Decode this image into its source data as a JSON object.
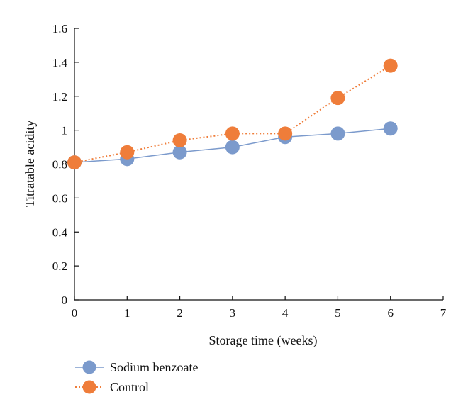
{
  "chart_data": {
    "type": "line",
    "title": "",
    "xlabel": "Storage time (weeks)",
    "ylabel": "Titratable acidity",
    "xlim": [
      0,
      7
    ],
    "ylim": [
      0,
      1.6
    ],
    "xticks": [
      "0",
      "1",
      "2",
      "3",
      "4",
      "5",
      "6",
      "7"
    ],
    "yticks": [
      "0",
      "0.2",
      "0.4",
      "0.6",
      "0.8",
      "1",
      "1.2",
      "1.4",
      "1.6"
    ],
    "grid": false,
    "legend_position": "bottom-left",
    "series": [
      {
        "name": "Sodium benzoate",
        "color": "#7b9acc",
        "line_style": "solid",
        "x": [
          0,
          1,
          2,
          3,
          4,
          5,
          6
        ],
        "y": [
          0.81,
          0.83,
          0.87,
          0.9,
          0.96,
          0.98,
          1.01
        ]
      },
      {
        "name": "Control",
        "color": "#ef7d3a",
        "line_style": "dotted",
        "x": [
          0,
          1,
          2,
          3,
          4,
          5,
          6
        ],
        "y": [
          0.81,
          0.87,
          0.94,
          0.98,
          0.98,
          1.19,
          1.38
        ]
      }
    ]
  }
}
